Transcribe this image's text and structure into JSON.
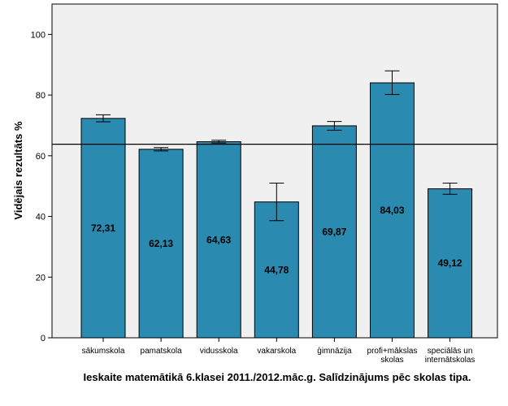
{
  "chart_data": {
    "type": "bar",
    "title": "",
    "xlabel": "Ieskaite matemātikā 6.klasei 2011./2012.māc.g. Salīdzinājums pēc skolas tipa.",
    "ylabel": "Vidējais rezultāts %",
    "ylim": [
      0,
      110
    ],
    "yticks": [
      0,
      20,
      40,
      60,
      80,
      100
    ],
    "grid": false,
    "legend": "none",
    "reference_line": 63.8,
    "categories": [
      [
        "sākumskola"
      ],
      [
        "pamatskola"
      ],
      [
        "vidusskola"
      ],
      [
        "vakarskola"
      ],
      [
        "ģimnāzija"
      ],
      [
        "profi+mākslas",
        "skolas"
      ],
      [
        "speciālās un",
        "internātskolas"
      ]
    ],
    "values": [
      72.31,
      62.13,
      64.63,
      44.78,
      69.87,
      84.03,
      49.12
    ],
    "value_labels": [
      "72,31",
      "62,13",
      "64,63",
      "44,78",
      "69,87",
      "84,03",
      "49,12"
    ],
    "error_low": [
      71.2,
      61.6,
      64.2,
      38.6,
      68.4,
      80.2,
      47.3
    ],
    "error_high": [
      73.5,
      62.7,
      65.1,
      51.0,
      71.3,
      88.0,
      51.0
    ],
    "colors": {
      "bar": "#2a8ab0",
      "plot_background": "#f0f0f0",
      "axis": "#000000"
    }
  }
}
